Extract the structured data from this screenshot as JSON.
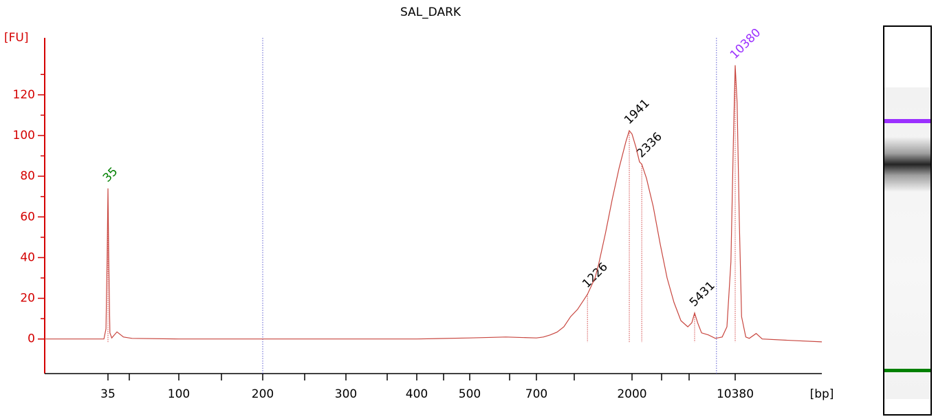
{
  "chart_data": {
    "type": "line",
    "title": "SAL_DARK",
    "ylabel": "[FU]",
    "xlabel": "[bp]",
    "axis_color": "#d40000",
    "color": "#c8463f",
    "xscale": "ladder",
    "xlim": [
      14,
      41500
    ],
    "xticks": [
      35,
      100,
      200,
      300,
      400,
      500,
      700,
      2000,
      10380
    ],
    "ylim": [
      -17,
      148
    ],
    "yticks": [
      0,
      20,
      40,
      60,
      80,
      100,
      120
    ],
    "x": [
      14,
      20,
      30,
      33,
      34,
      34.6,
      35,
      35.4,
      36,
      37,
      40,
      44,
      50,
      100,
      200,
      400,
      500,
      600,
      700,
      756,
      814,
      878,
      946,
      1019,
      1099,
      1184,
      1226,
      1332,
      1385,
      1494,
      1609,
      1735,
      1870,
      1941,
      2000,
      2135,
      2255,
      2336,
      2519,
      2809,
      3138,
      3502,
      3909,
      4364,
      4871,
      5200,
      5431,
      5700,
      6066,
      6772,
      7560,
      8438,
      9100,
      9700,
      10100,
      10380,
      10700,
      11093,
      11500,
      12300,
      13000,
      14520,
      16000,
      25400,
      41500
    ],
    "values": [
      0,
      0,
      0,
      0,
      5,
      40,
      74,
      40,
      3,
      0.5,
      3.5,
      1,
      0.3,
      0,
      0,
      0,
      0.5,
      1,
      0.5,
      1,
      2,
      3.4,
      6,
      11,
      14.5,
      19.6,
      22,
      30,
      36.5,
      52,
      68.6,
      84,
      97,
      102.4,
      100.7,
      94,
      87,
      86,
      79,
      65,
      46.6,
      30,
      18,
      9,
      6,
      8,
      12.8,
      8,
      3,
      2,
      0.3,
      1,
      6,
      38,
      99,
      134.5,
      116,
      58,
      11,
      1,
      0.3,
      2.7,
      0,
      -0.7,
      -1.4
    ],
    "marker_lines": [
      200,
      7700
    ],
    "marker_line_color": "#5a5ad0",
    "annotations": [
      {
        "text": "35",
        "x": 35,
        "y": 74,
        "color": "#008000"
      },
      {
        "text": "1226",
        "x": 1226,
        "y": 22,
        "color": "#000000"
      },
      {
        "text": "1941",
        "x": 1941,
        "y": 102.4,
        "color": "#000000"
      },
      {
        "text": "2336",
        "x": 2336,
        "y": 86,
        "color": "#000000"
      },
      {
        "text": "5431",
        "x": 5431,
        "y": 12.8,
        "color": "#000000"
      },
      {
        "text": "10380",
        "x": 10380,
        "y": 134.5,
        "color": "#9b30ff"
      }
    ]
  }
}
